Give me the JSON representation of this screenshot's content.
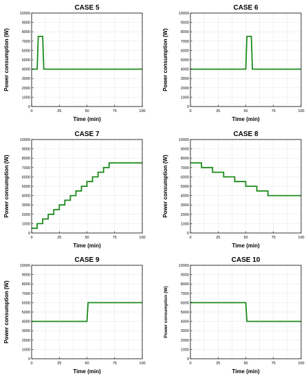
{
  "chart_data": [
    {
      "type": "line",
      "title": "CASE 5",
      "xlabel": "Time (min)",
      "ylabel": "Power consumption (W)",
      "xlim": [
        0,
        100
      ],
      "ylim": [
        0,
        10000
      ],
      "xticks": [
        0,
        25,
        50,
        75,
        100
      ],
      "yticks": [
        0,
        1000,
        2000,
        3000,
        4000,
        5000,
        6000,
        7000,
        8000,
        9000,
        10000
      ],
      "grid": true,
      "color": "#1a8a1a",
      "x": [
        0,
        5,
        6,
        10,
        11,
        100
      ],
      "y": [
        4000,
        4000,
        7500,
        7500,
        4000,
        4000
      ]
    },
    {
      "type": "line",
      "title": "CASE 6",
      "xlabel": "Time (min)",
      "ylabel": "Power consumption (W)",
      "xlim": [
        0,
        100
      ],
      "ylim": [
        0,
        10000
      ],
      "xticks": [
        0,
        25,
        50,
        75,
        100
      ],
      "yticks": [
        0,
        1000,
        2000,
        3000,
        4000,
        5000,
        6000,
        7000,
        8000,
        9000,
        10000
      ],
      "grid": true,
      "color": "#1a8a1a",
      "x": [
        0,
        50,
        51,
        55,
        56,
        100
      ],
      "y": [
        4000,
        4000,
        7500,
        7500,
        4000,
        4000
      ]
    },
    {
      "type": "line",
      "title": "CASE 7",
      "xlabel": "Time (min)",
      "ylabel": "Power consumption (W)",
      "xlim": [
        0,
        100
      ],
      "ylim": [
        0,
        10000
      ],
      "xticks": [
        0,
        25,
        50,
        75,
        100
      ],
      "yticks": [
        0,
        1000,
        2000,
        3000,
        4000,
        5000,
        6000,
        7000,
        8000,
        9000,
        10000
      ],
      "grid": true,
      "color": "#1a8a1a",
      "x": [
        0,
        5,
        5,
        10,
        10,
        15,
        15,
        20,
        20,
        25,
        25,
        30,
        30,
        35,
        35,
        40,
        40,
        45,
        45,
        50,
        50,
        55,
        55,
        60,
        60,
        65,
        65,
        70,
        70,
        100
      ],
      "y": [
        500,
        500,
        1000,
        1000,
        1500,
        1500,
        2000,
        2000,
        2500,
        2500,
        3000,
        3000,
        3500,
        3500,
        4000,
        4000,
        4500,
        4500,
        5000,
        5000,
        5500,
        5500,
        6000,
        6000,
        6500,
        6500,
        7000,
        7000,
        7500,
        7500
      ]
    },
    {
      "type": "line",
      "title": "CASE 8",
      "xlabel": "Time (min)",
      "ylabel": "Power consumption (W)",
      "xlim": [
        0,
        100
      ],
      "ylim": [
        0,
        10000
      ],
      "xticks": [
        0,
        25,
        50,
        75,
        100
      ],
      "yticks": [
        0,
        1000,
        2000,
        3000,
        4000,
        5000,
        6000,
        7000,
        8000,
        9000,
        10000
      ],
      "grid": true,
      "color": "#1a8a1a",
      "x": [
        0,
        10,
        10,
        20,
        20,
        30,
        30,
        40,
        40,
        50,
        50,
        60,
        60,
        70,
        70,
        100
      ],
      "y": [
        7500,
        7500,
        7000,
        7000,
        6500,
        6500,
        6000,
        6000,
        5500,
        5500,
        5000,
        5000,
        4500,
        4500,
        4000,
        4000
      ]
    },
    {
      "type": "line",
      "title": "CASE 9",
      "xlabel": "Time (min)",
      "ylabel": "Power consumption (W)",
      "xlim": [
        0,
        100
      ],
      "ylim": [
        0,
        10000
      ],
      "xticks": [
        0,
        25,
        50,
        75,
        100
      ],
      "yticks": [
        0,
        1000,
        2000,
        3000,
        4000,
        5000,
        6000,
        7000,
        8000,
        9000,
        10000
      ],
      "grid": true,
      "color": "#1a8a1a",
      "x": [
        0,
        50,
        51,
        100
      ],
      "y": [
        4000,
        4000,
        6000,
        6000
      ]
    },
    {
      "type": "line",
      "title": "CASE 10",
      "xlabel": "Time (min)",
      "ylabel": "Power consumption (W)",
      "xlim": [
        0,
        100
      ],
      "ylim": [
        0,
        10000
      ],
      "xticks": [
        0,
        25,
        50,
        75,
        100
      ],
      "yticks": [
        0,
        1000,
        2000,
        3000,
        4000,
        5000,
        6000,
        7000,
        8000,
        9000,
        10000
      ],
      "grid": true,
      "color": "#1a8a1a",
      "x": [
        0,
        50,
        51,
        100
      ],
      "y": [
        6000,
        6000,
        4000,
        4000
      ]
    }
  ]
}
